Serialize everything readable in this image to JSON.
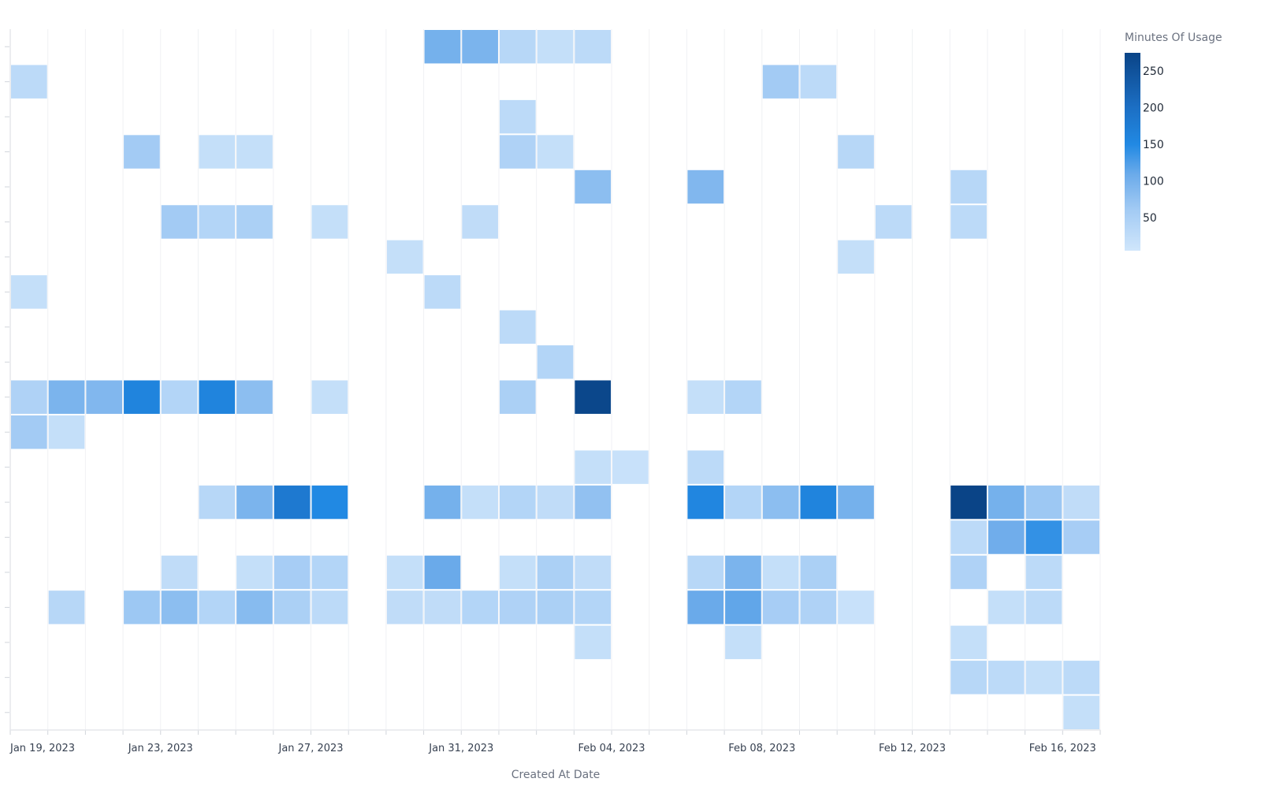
{
  "chart_data": {
    "type": "heatmap",
    "title": "",
    "xlabel": "Created At Date",
    "ylabel": "",
    "x_start": "2023-01-19",
    "x_end": "2023-02-16",
    "x_tick_labels": [
      "Jan 19, 2023",
      "Jan 23, 2023",
      "Jan 27, 2023",
      "Jan 31, 2023",
      "Feb 04, 2023",
      "Feb 08, 2023",
      "Feb 12, 2023",
      "Feb 16, 2023"
    ],
    "rows": 20,
    "legend": {
      "title": "Minutes Of Usage",
      "ticks": [
        50,
        100,
        150,
        200,
        250
      ],
      "range": [
        5,
        275
      ],
      "placement": "right"
    },
    "colors": {
      "low": "#d0e6fb",
      "mid": "#2189e3",
      "high": "#0a4487"
    },
    "grid": true,
    "cells": [
      [
        "2023-01-30",
        1,
        100
      ],
      [
        "2023-01-31",
        1,
        95
      ],
      [
        "2023-02-01",
        1,
        35
      ],
      [
        "2023-02-02",
        1,
        20
      ],
      [
        "2023-02-03",
        1,
        30
      ],
      [
        "2023-01-19",
        2,
        30
      ],
      [
        "2023-02-08",
        2,
        60
      ],
      [
        "2023-02-09",
        2,
        30
      ],
      [
        "2023-02-01",
        3,
        30
      ],
      [
        "2023-01-22",
        4,
        60
      ],
      [
        "2023-01-24",
        4,
        20
      ],
      [
        "2023-01-25",
        4,
        20
      ],
      [
        "2023-02-01",
        4,
        45
      ],
      [
        "2023-02-02",
        4,
        20
      ],
      [
        "2023-02-10",
        4,
        35
      ],
      [
        "2023-02-03",
        5,
        80
      ],
      [
        "2023-02-06",
        5,
        90
      ],
      [
        "2023-02-13",
        5,
        35
      ],
      [
        "2023-01-23",
        6,
        60
      ],
      [
        "2023-01-24",
        6,
        40
      ],
      [
        "2023-01-25",
        6,
        50
      ],
      [
        "2023-01-27",
        6,
        20
      ],
      [
        "2023-01-31",
        6,
        25
      ],
      [
        "2023-02-11",
        6,
        30
      ],
      [
        "2023-02-13",
        6,
        30
      ],
      [
        "2023-01-29",
        7,
        20
      ],
      [
        "2023-02-10",
        7,
        20
      ],
      [
        "2023-01-19",
        8,
        20
      ],
      [
        "2023-01-30",
        8,
        30
      ],
      [
        "2023-02-01",
        9,
        30
      ],
      [
        "2023-02-02",
        10,
        40
      ],
      [
        "2023-01-19",
        11,
        45
      ],
      [
        "2023-01-20",
        11,
        95
      ],
      [
        "2023-01-21",
        11,
        90
      ],
      [
        "2023-01-22",
        11,
        160
      ],
      [
        "2023-01-23",
        11,
        40
      ],
      [
        "2023-01-24",
        11,
        160
      ],
      [
        "2023-01-25",
        11,
        80
      ],
      [
        "2023-01-27",
        11,
        20
      ],
      [
        "2023-02-01",
        11,
        50
      ],
      [
        "2023-02-03",
        11,
        270
      ],
      [
        "2023-02-06",
        11,
        20
      ],
      [
        "2023-02-07",
        11,
        40
      ],
      [
        "2023-01-19",
        12,
        60
      ],
      [
        "2023-01-20",
        12,
        20
      ],
      [
        "2023-02-03",
        13,
        20
      ],
      [
        "2023-02-04",
        13,
        15
      ],
      [
        "2023-02-06",
        13,
        30
      ],
      [
        "2023-01-24",
        14,
        35
      ],
      [
        "2023-01-25",
        14,
        95
      ],
      [
        "2023-01-26",
        14,
        180
      ],
      [
        "2023-01-27",
        14,
        150
      ],
      [
        "2023-01-30",
        14,
        100
      ],
      [
        "2023-01-31",
        14,
        20
      ],
      [
        "2023-02-01",
        14,
        40
      ],
      [
        "2023-02-02",
        14,
        25
      ],
      [
        "2023-02-03",
        14,
        75
      ],
      [
        "2023-02-06",
        14,
        155
      ],
      [
        "2023-02-07",
        14,
        40
      ],
      [
        "2023-02-08",
        14,
        80
      ],
      [
        "2023-02-09",
        14,
        160
      ],
      [
        "2023-02-10",
        14,
        100
      ],
      [
        "2023-02-13",
        14,
        275
      ],
      [
        "2023-02-14",
        14,
        100
      ],
      [
        "2023-02-15",
        14,
        65
      ],
      [
        "2023-02-16",
        14,
        25
      ],
      [
        "2023-02-13",
        15,
        30
      ],
      [
        "2023-02-14",
        15,
        105
      ],
      [
        "2023-02-15",
        15,
        140
      ],
      [
        "2023-02-16",
        15,
        55
      ],
      [
        "2023-01-23",
        16,
        25
      ],
      [
        "2023-01-25",
        16,
        20
      ],
      [
        "2023-01-26",
        16,
        55
      ],
      [
        "2023-01-27",
        16,
        40
      ],
      [
        "2023-01-29",
        16,
        20
      ],
      [
        "2023-01-30",
        16,
        110
      ],
      [
        "2023-02-01",
        16,
        20
      ],
      [
        "2023-02-02",
        16,
        50
      ],
      [
        "2023-02-03",
        16,
        25
      ],
      [
        "2023-02-06",
        16,
        35
      ],
      [
        "2023-02-07",
        16,
        95
      ],
      [
        "2023-02-08",
        16,
        20
      ],
      [
        "2023-02-09",
        16,
        50
      ],
      [
        "2023-02-13",
        16,
        45
      ],
      [
        "2023-02-15",
        16,
        30
      ],
      [
        "2023-01-20",
        17,
        35
      ],
      [
        "2023-01-22",
        17,
        65
      ],
      [
        "2023-01-23",
        17,
        80
      ],
      [
        "2023-01-24",
        17,
        40
      ],
      [
        "2023-01-25",
        17,
        85
      ],
      [
        "2023-01-26",
        17,
        50
      ],
      [
        "2023-01-27",
        17,
        30
      ],
      [
        "2023-01-29",
        17,
        25
      ],
      [
        "2023-01-30",
        17,
        25
      ],
      [
        "2023-01-31",
        17,
        40
      ],
      [
        "2023-02-01",
        17,
        45
      ],
      [
        "2023-02-02",
        17,
        50
      ],
      [
        "2023-02-03",
        17,
        40
      ],
      [
        "2023-02-06",
        17,
        110
      ],
      [
        "2023-02-07",
        17,
        115
      ],
      [
        "2023-02-08",
        17,
        55
      ],
      [
        "2023-02-09",
        17,
        45
      ],
      [
        "2023-02-10",
        17,
        15
      ],
      [
        "2023-02-14",
        17,
        20
      ],
      [
        "2023-02-15",
        17,
        30
      ],
      [
        "2023-02-03",
        18,
        20
      ],
      [
        "2023-02-07",
        18,
        20
      ],
      [
        "2023-02-13",
        18,
        20
      ],
      [
        "2023-02-13",
        19,
        35
      ],
      [
        "2023-02-14",
        19,
        30
      ],
      [
        "2023-02-15",
        19,
        20
      ],
      [
        "2023-02-16",
        19,
        30
      ],
      [
        "2023-02-16",
        20,
        20
      ]
    ]
  }
}
